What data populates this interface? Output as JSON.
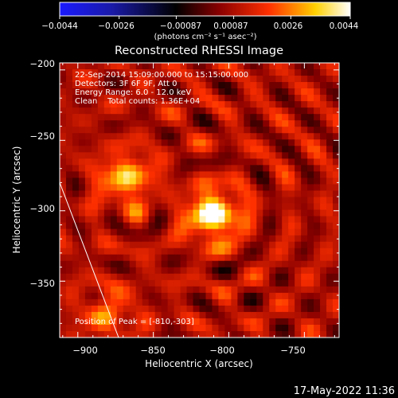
{
  "chart_data": {
    "type": "heatmap",
    "title": "Reconstructed RHESSI Image",
    "xlabel": "Heliocentric X (arcsec)",
    "ylabel": "Heliocentric Y (arcsec)",
    "xlim": [
      -912,
      -727
    ],
    "ylim": [
      -390,
      -195
    ],
    "x_ticks": [
      -900,
      -850,
      -800,
      -750
    ],
    "x_tick_labels": [
      "−900",
      "−850",
      "−800",
      "−750"
    ],
    "y_ticks": [
      -200,
      -250,
      -300,
      -350
    ],
    "y_tick_labels": [
      "−200",
      "−250",
      "−300",
      "−350"
    ],
    "colorbar": {
      "colormap": "blue-black-red-yellow-white",
      "ticks": [
        -0.0044,
        -0.0026,
        -0.00087,
        0.00087,
        0.0026,
        0.0044
      ],
      "tick_labels": [
        "−0.0044",
        "−0.0026",
        "−0.00087",
        "0.00087",
        "0.0026",
        "0.0044"
      ],
      "unit_label": "(photons cm⁻² s⁻¹ asec⁻²)",
      "range": [
        -0.0044,
        0.0044
      ]
    },
    "sources": [
      {
        "x": -810,
        "y": -303,
        "peak": 0.0044
      },
      {
        "x": -868,
        "y": -277,
        "peak": 0.003
      },
      {
        "x": -880,
        "y": -373,
        "peak": 0.0018
      }
    ],
    "limb_line": [
      [
        -912,
        -280
      ],
      [
        -873,
        -390
      ]
    ],
    "annotations": {
      "time_range": "22-Sep-2014 15:09:00.000 to 15:15:00.000",
      "detectors": "Detectors: 3F 6F 9F, Att 0",
      "energy": "Energy Range: 6.0 - 12.0 keV",
      "clean": "Clean    Total counts: 1.36E+04",
      "peak_position": "Position of Peak = [-810,-303]"
    },
    "colors": {
      "background": "#000000",
      "text": "#ffffff",
      "limb": "#ffffff"
    }
  },
  "footer": {
    "timestamp": "17-May-2022 11:36"
  }
}
